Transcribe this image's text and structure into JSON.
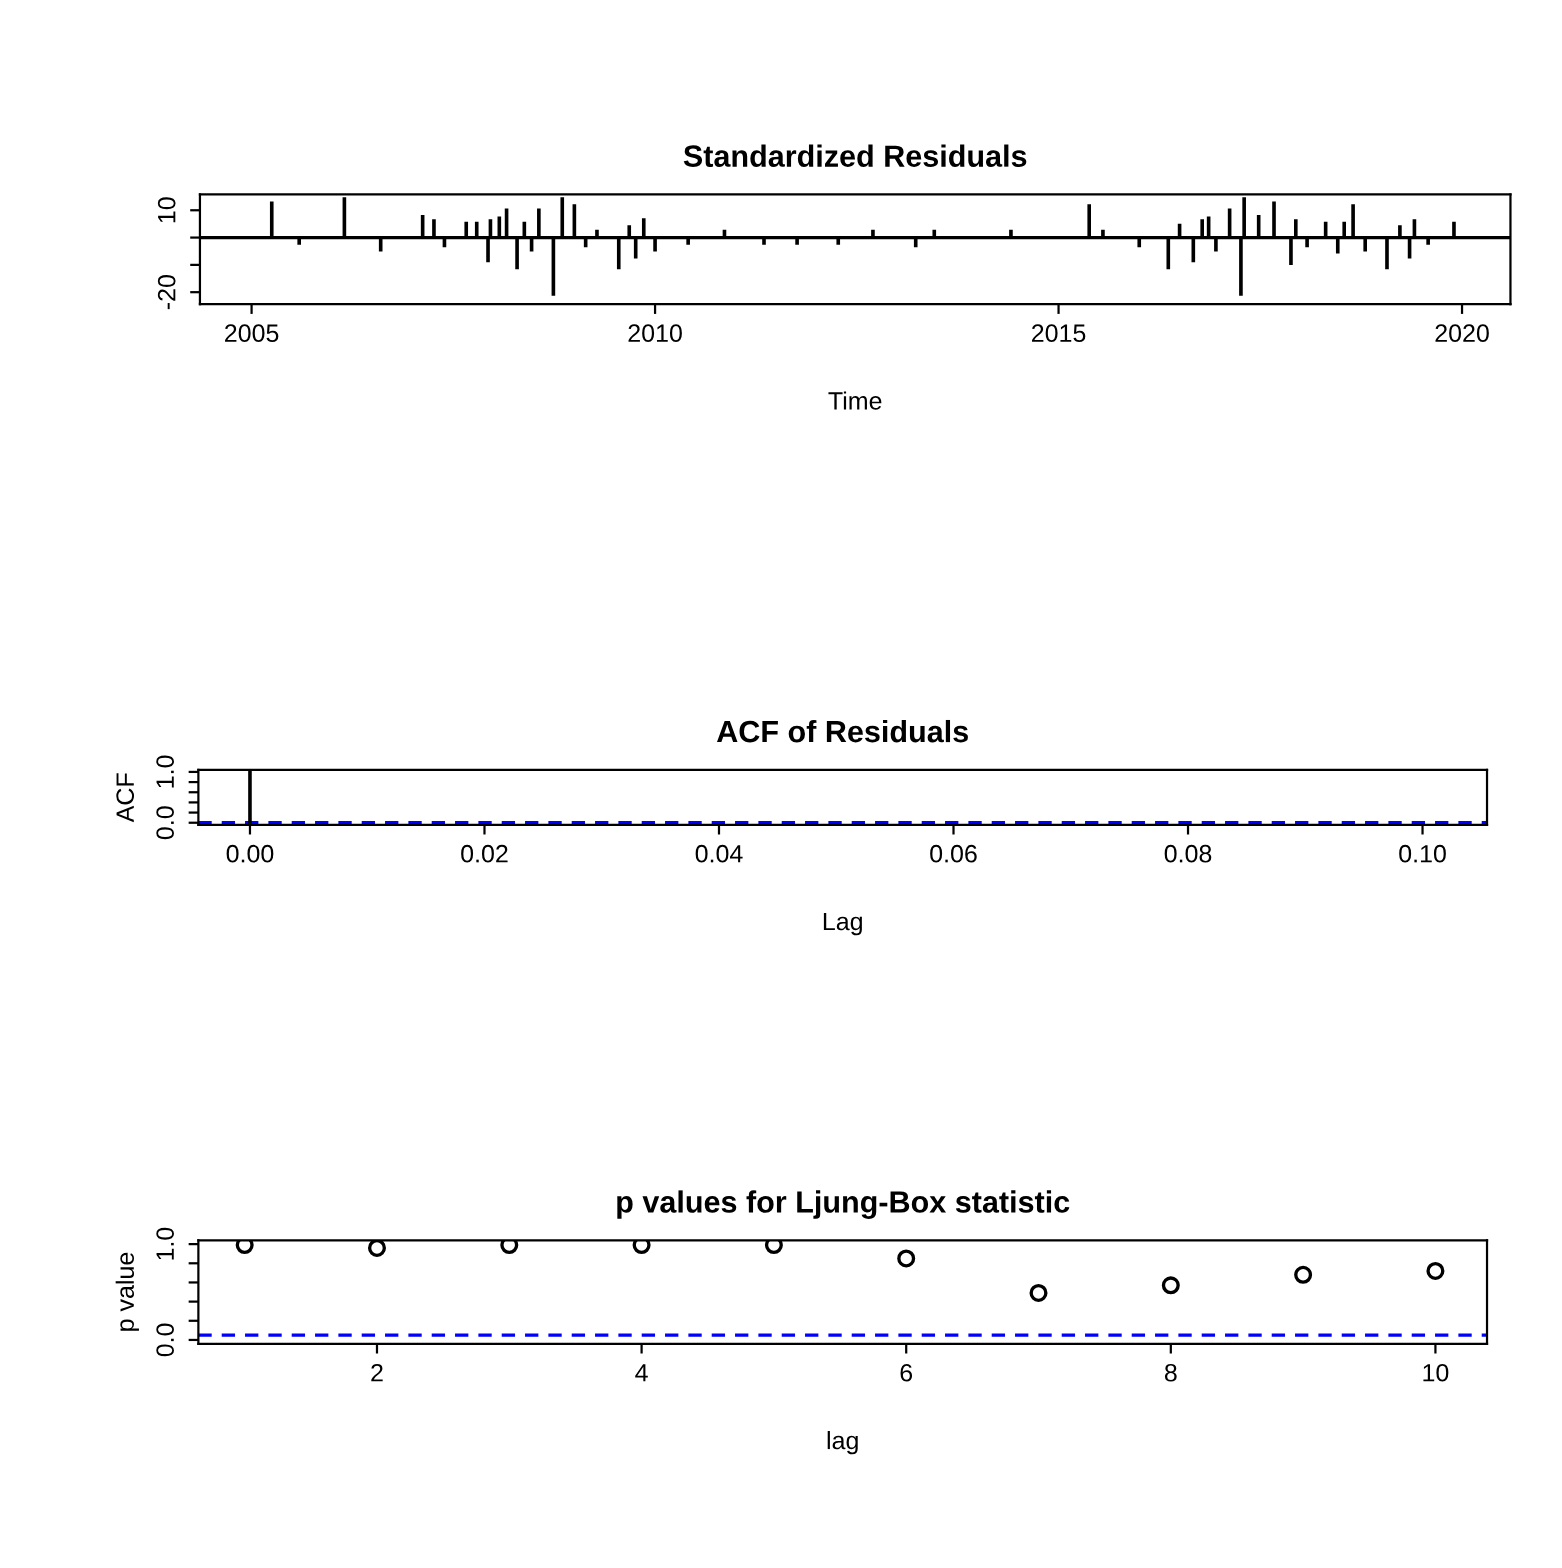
{
  "chart_data": [
    {
      "type": "bar",
      "title": "Standardized Residuals",
      "xlabel": "Time",
      "x": [
        2005.25,
        2005.59,
        2006.15,
        2006.6,
        2007.12,
        2007.26,
        2007.39,
        2007.66,
        2007.79,
        2007.93,
        2007.96,
        2008.07,
        2008.16,
        2008.29,
        2008.38,
        2008.47,
        2008.56,
        2008.74,
        2008.85,
        2009.0,
        2009.14,
        2009.28,
        2009.55,
        2009.68,
        2009.76,
        2009.86,
        2010.0,
        2010.41,
        2010.86,
        2011.35,
        2011.76,
        2012.27,
        2012.7,
        2013.23,
        2013.46,
        2014.41,
        2015.38,
        2015.55,
        2016.0,
        2016.36,
        2016.5,
        2016.67,
        2016.78,
        2016.86,
        2016.95,
        2017.12,
        2017.26,
        2017.3,
        2017.48,
        2017.67,
        2017.88,
        2017.94,
        2018.08,
        2018.31,
        2018.46,
        2018.54,
        2018.65,
        2018.8,
        2019.07,
        2019.23,
        2019.35,
        2019.41,
        2019.58,
        2019.9
      ],
      "series": [
        {
          "color": "#000000",
          "values": [
            12.9,
            -2.3,
            14.5,
            -4.8,
            8,
            6.4,
            -3.2,
            5.5,
            5.5,
            -8.7,
            6.4,
            7.4,
            10.3,
            -11.3,
            5.5,
            -4.8,
            10.3,
            -21,
            14.5,
            11.9,
            -3.2,
            2.6,
            -11.3,
            4.2,
            -7.4,
            6.8,
            -4.8,
            -2.3,
            2.6,
            -2.3,
            -2.3,
            -2.3,
            2.6,
            -3.2,
            2.6,
            2.6,
            11.9,
            2.6,
            -3.2,
            -11.3,
            4.8,
            -8.7,
            6.4,
            7.4,
            -4.8,
            10.3,
            -21,
            14.5,
            8,
            12.9,
            -9.7,
            6.4,
            -3.2,
            5.5,
            -5.5,
            5.5,
            11.9,
            -4.8,
            -11.3,
            4.2,
            -7.4,
            6.4,
            -2.3,
            5.5
          ]
        }
      ],
      "xlim": [
        2004.36,
        2020.6
      ],
      "xticks": [
        2005,
        2010,
        2015,
        2020
      ],
      "ylim": [
        -24.4,
        15.8
      ],
      "yticks": [
        -20,
        {
          "value": -10,
          "label": null
        },
        {
          "value": 0,
          "label": null
        },
        10
      ],
      "ref_lines": [
        {
          "axis": "y",
          "value": 0,
          "color": "#000000",
          "line_style": "solid"
        }
      ],
      "grid": false,
      "legend": false
    },
    {
      "type": "bar",
      "title": "ACF of Residuals",
      "xlabel": "Lag",
      "ylabel": "ACF",
      "x": [
        0
      ],
      "series": [
        {
          "color": "#000000",
          "values": [
            1
          ]
        }
      ],
      "xlim": [
        -0.0044,
        0.1055
      ],
      "xticks": [
        {
          "value": 0,
          "label": "0.00"
        },
        {
          "value": 0.02,
          "label": "0.02"
        },
        {
          "value": 0.04,
          "label": "0.04"
        },
        {
          "value": 0.06,
          "label": "0.06"
        },
        {
          "value": 0.08,
          "label": "0.08"
        },
        {
          "value": 0.1,
          "label": "0.10"
        }
      ],
      "ylim": [
        -0.04,
        1.04
      ],
      "yticks": [
        {
          "value": 0,
          "label": "0.0"
        },
        {
          "value": 0.2,
          "label": null
        },
        {
          "value": 0.4,
          "label": null
        },
        {
          "value": 0.6,
          "label": null
        },
        {
          "value": 0.8,
          "label": null
        },
        {
          "value": 1.0,
          "label": "1.0"
        }
      ],
      "ref_lines": [
        {
          "axis": "y",
          "value": 0,
          "color": "#0000ff",
          "line_style": "dashed"
        }
      ],
      "grid": false,
      "legend": false
    },
    {
      "type": "scatter",
      "title": "p values for Ljung-Box statistic",
      "xlabel": "lag",
      "ylabel": "p value",
      "marker": "circle",
      "x": [
        1,
        2,
        3,
        4,
        5,
        6,
        7,
        8,
        9,
        10
      ],
      "series": [
        {
          "color": "#000000",
          "values": [
            0.99,
            0.96,
            0.99,
            0.99,
            0.99,
            0.85,
            0.49,
            0.57,
            0.68,
            0.72
          ]
        }
      ],
      "xlim": [
        0.65,
        10.39
      ],
      "xticks": [
        2,
        4,
        6,
        8,
        10
      ],
      "ylim": [
        -0.04,
        1.04
      ],
      "yticks": [
        {
          "value": 0,
          "label": "0.0"
        },
        {
          "value": 0.2,
          "label": null
        },
        {
          "value": 0.4,
          "label": null
        },
        {
          "value": 0.6,
          "label": null
        },
        {
          "value": 0.8,
          "label": null
        },
        {
          "value": 1.0,
          "label": "1.0"
        }
      ],
      "ref_lines": [
        {
          "axis": "y",
          "value": 0.05,
          "color": "#0000ff",
          "line_style": "dashed"
        }
      ],
      "grid": false,
      "legend": false
    }
  ]
}
